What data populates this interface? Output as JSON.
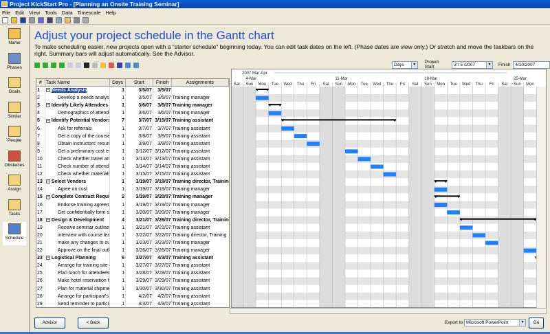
{
  "window": {
    "title": "Project KickStart Pro - [Planning an Onsite Training Seminar]"
  },
  "menu": [
    "File",
    "Edit",
    "View",
    "Tools",
    "Data",
    "Timescale",
    "Help"
  ],
  "sidebar": [
    {
      "label": "Name",
      "color": "#f3c050"
    },
    {
      "label": "Phases",
      "color": "#6a8fd0"
    },
    {
      "label": "Goals",
      "color": "#f3d27a"
    },
    {
      "label": "Similar",
      "color": "#f3d27a"
    },
    {
      "label": "People",
      "color": "#f3d27a"
    },
    {
      "label": "Obstacles",
      "color": "#d05040"
    },
    {
      "label": "Assign",
      "color": "#f3d27a"
    },
    {
      "label": "Tasks",
      "color": "#f3d27a"
    },
    {
      "label": "Schedule",
      "color": "#5080d0",
      "active": true
    }
  ],
  "heading": "Adjust your project schedule in the Gantt chart",
  "intro": "To make scheduling easier, new projects open with a \"starter schedule\" beginning today. You can edit task dates on the left. (Phase dates are view only.) Or stretch and move the taskbars on the right. Summary bars will adjust automatically. See the Advisor.",
  "controls": {
    "scale": "Days",
    "project_start_label": "Project Start",
    "project_start": "3 / 5 /2007",
    "finish_label": "Finish",
    "finish": "4/10/2007"
  },
  "table": {
    "headers": [
      "#",
      "Task Name",
      "Days",
      "Start",
      "Finish",
      "Assignments"
    ],
    "rows": [
      {
        "n": "1",
        "name": "Needs Analysis",
        "days": "1",
        "start": "3/5/07",
        "finish": "3/5/07",
        "assign": "",
        "summary": true
      },
      {
        "n": "2",
        "name": "Develop a needs analysis",
        "days": "1",
        "start": "3/5/07",
        "finish": "3/5/07",
        "assign": "Training manager"
      },
      {
        "n": "3",
        "name": "Identify Likely Attendees",
        "days": "1",
        "start": "3/6/07",
        "finish": "3/6/07",
        "assign": "Training manager",
        "summary": true
      },
      {
        "n": "4",
        "name": "Demographics of attendees",
        "days": "1",
        "start": "3/6/07",
        "finish": "3/6/07",
        "assign": "Training manager"
      },
      {
        "n": "5",
        "name": "Identify Potential Vendors",
        "days": "7",
        "start": "3/7/07",
        "finish": "3/15/07",
        "assign": "Training assistant",
        "summary": true
      },
      {
        "n": "6",
        "name": "Ask for referrals",
        "days": "1",
        "start": "3/7/07",
        "finish": "3/7/07",
        "assign": "Training assistant"
      },
      {
        "n": "7",
        "name": "Get a copy of the course",
        "days": "1",
        "start": "3/8/07",
        "finish": "3/8/07",
        "assign": "Training assistant"
      },
      {
        "n": "8",
        "name": "Obtain instructors' resumes",
        "days": "1",
        "start": "3/9/07",
        "finish": "3/9/07",
        "assign": "Training assistant"
      },
      {
        "n": "9",
        "name": "Get a preliminary cost estimate",
        "days": "1",
        "start": "3/12/07",
        "finish": "3/12/07",
        "assign": "Training assistant"
      },
      {
        "n": "10",
        "name": "Check whether travel are",
        "days": "1",
        "start": "3/13/07",
        "finish": "3/13/07",
        "assign": "Training assistant"
      },
      {
        "n": "11",
        "name": "Check number of attendees",
        "days": "1",
        "start": "3/14/07",
        "finish": "3/14/07",
        "assign": "Training assistant"
      },
      {
        "n": "12",
        "name": "Check whether materials",
        "days": "1",
        "start": "3/15/07",
        "finish": "3/15/07",
        "assign": "Training assistant"
      },
      {
        "n": "13",
        "name": "Select Vendors",
        "days": "1",
        "start": "3/19/07",
        "finish": "3/19/07",
        "assign": "Training director, Training",
        "summary": true
      },
      {
        "n": "14",
        "name": "Agree on cost",
        "days": "1",
        "start": "3/19/07",
        "finish": "3/19/07",
        "assign": "Training manager"
      },
      {
        "n": "15",
        "name": "Complete Contract Requirements",
        "days": "2",
        "start": "3/19/07",
        "finish": "3/20/07",
        "assign": "Training manager",
        "summary": true
      },
      {
        "n": "16",
        "name": "Endorse training agreement",
        "days": "1",
        "start": "3/19/07",
        "finish": "3/19/07",
        "assign": "Training manager"
      },
      {
        "n": "17",
        "name": "Get confidentially form s",
        "days": "1",
        "start": "3/20/07",
        "finish": "3/20/07",
        "assign": "Training manager"
      },
      {
        "n": "18",
        "name": "Design & Development",
        "days": "4",
        "start": "3/21/07",
        "finish": "3/26/07",
        "assign": "Training director, Training",
        "summary": true
      },
      {
        "n": "19",
        "name": "Receive seminar outline",
        "days": "1",
        "start": "3/21/07",
        "finish": "3/21/07",
        "assign": "Training assistant"
      },
      {
        "n": "20",
        "name": "interview with course leader",
        "days": "1",
        "start": "3/22/07",
        "finish": "3/22/07",
        "assign": "Training director, Training"
      },
      {
        "n": "21",
        "name": "make any changes to outline",
        "days": "1",
        "start": "3/23/07",
        "finish": "3/23/07",
        "assign": "Training manager"
      },
      {
        "n": "22",
        "name": "Approve on the final outline",
        "days": "1",
        "start": "3/26/07",
        "finish": "3/26/07",
        "assign": "Training manager"
      },
      {
        "n": "23",
        "name": "Logistical Planning",
        "days": "6",
        "start": "3/27/07",
        "finish": "4/3/07",
        "assign": "Training assistant",
        "summary": true
      },
      {
        "n": "24",
        "name": "Arrange for training site",
        "days": "1",
        "start": "3/27/07",
        "finish": "3/27/07",
        "assign": "Training assistant"
      },
      {
        "n": "25",
        "name": "Plan lunch for attendees",
        "days": "1",
        "start": "3/28/07",
        "finish": "3/28/07",
        "assign": "Training assistant"
      },
      {
        "n": "26",
        "name": "Make hotel reservation for",
        "days": "1",
        "start": "3/29/07",
        "finish": "3/29/07",
        "assign": "Training assistant"
      },
      {
        "n": "27",
        "name": "Plan for material shipment",
        "days": "1",
        "start": "3/30/07",
        "finish": "3/30/07",
        "assign": "Training assistant"
      },
      {
        "n": "28",
        "name": "Arrange for participant's",
        "days": "1",
        "start": "4/2/07",
        "finish": "4/2/07",
        "assign": "Training assistant"
      },
      {
        "n": "29",
        "name": "Send reminder to participants",
        "days": "1",
        "start": "4/3/07",
        "finish": "4/3/07",
        "assign": "Training assistant"
      }
    ]
  },
  "gantt": {
    "period": "2007 Mar-Apr",
    "weeks": [
      "4-Mar",
      "11-Mar",
      "18-Mar",
      "25-Mar"
    ],
    "days": [
      "Sat",
      "Sun",
      "Mon",
      "Tue",
      "Wed",
      "Thu",
      "Fri",
      "Sat",
      "Sun",
      "Mon",
      "Tue",
      "Wed",
      "Thu",
      "Fri",
      "Sat",
      "Sun",
      "Mon",
      "Tue",
      "Wed",
      "Thu",
      "Fri",
      "Sat",
      "Sun",
      "Mon"
    ],
    "bar_color": "#1e7fff",
    "weekend_color": "#dcdcdc"
  },
  "footer": {
    "advisor": "Advisor",
    "back": "< Back",
    "export_label": "Export to:",
    "export_value": "Microsoft PowerPoint",
    "go": "Go"
  }
}
